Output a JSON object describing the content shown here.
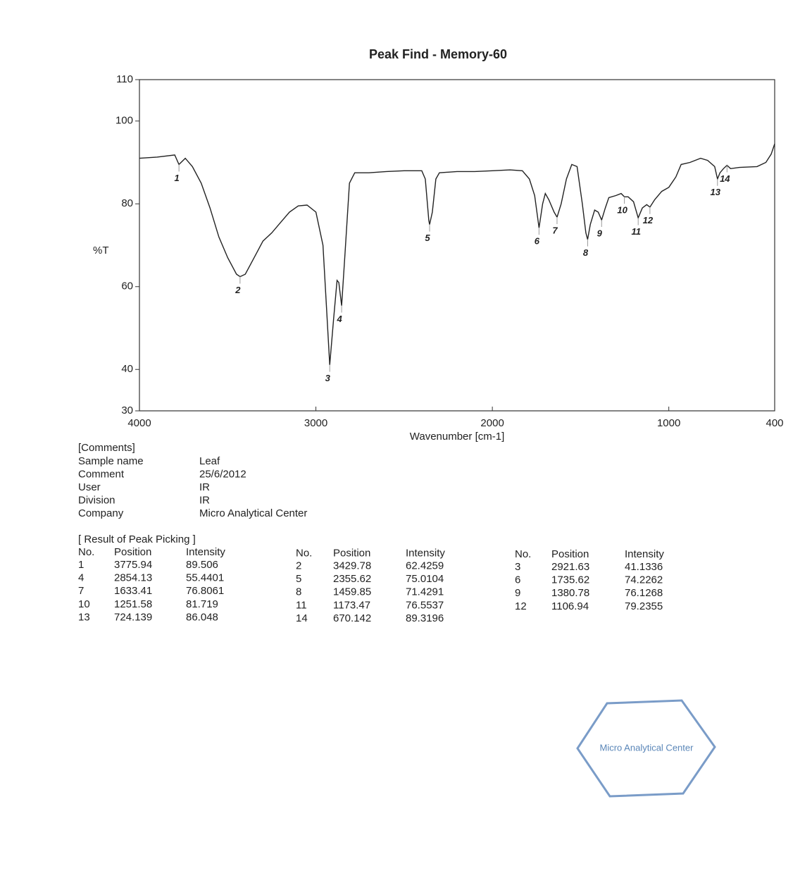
{
  "chart_data": {
    "type": "line",
    "title": "Peak Find - Memory-60",
    "x_label": "Wavenumber [cm-1]",
    "y_label": "%T",
    "color": "#222222",
    "xlim": [
      4000,
      400
    ],
    "xticks": [
      4000,
      3000,
      2000,
      1000,
      400
    ],
    "ylim": [
      30,
      110
    ],
    "yticks": [
      30,
      40,
      60,
      80,
      100,
      110
    ],
    "x": [
      4000,
      3900,
      3800,
      3775.94,
      3740,
      3700,
      3650,
      3600,
      3550,
      3500,
      3450,
      3429.78,
      3400,
      3350,
      3300,
      3250,
      3200,
      3150,
      3100,
      3050,
      3000,
      2960,
      2940,
      2921.63,
      2900,
      2880,
      2870,
      2854.13,
      2835,
      2810,
      2780,
      2700,
      2600,
      2500,
      2400,
      2380,
      2360,
      2355.62,
      2340,
      2320,
      2300,
      2200,
      2100,
      2000,
      1900,
      1830,
      1790,
      1760,
      1735.62,
      1715,
      1700,
      1680,
      1650,
      1633.41,
      1610,
      1580,
      1550,
      1520,
      1490,
      1470,
      1459.85,
      1445,
      1420,
      1400,
      1380.78,
      1360,
      1340,
      1300,
      1270,
      1251.58,
      1230,
      1200,
      1173.47,
      1150,
      1125,
      1106.94,
      1080,
      1040,
      1000,
      960,
      930,
      880,
      820,
      780,
      740,
      724.139,
      710,
      690,
      670.142,
      650,
      600,
      500,
      450,
      420,
      400
    ],
    "values": [
      91,
      91.3,
      91.8,
      89.5,
      91,
      89,
      85,
      79,
      72,
      67,
      63,
      62.4,
      63,
      67,
      71,
      73,
      75.5,
      78,
      79.5,
      79.7,
      78,
      70,
      55,
      41.1,
      52,
      61.5,
      61,
      55.4,
      68,
      85,
      87.5,
      87.5,
      87.8,
      88,
      88,
      86,
      76,
      75,
      78,
      86,
      87.5,
      87.8,
      87.8,
      88,
      88.2,
      88,
      86,
      82,
      74.2,
      80,
      82.5,
      81,
      78,
      76.8,
      80,
      86,
      89.5,
      89,
      80,
      73,
      71.4,
      75,
      78.5,
      78,
      76.1,
      79,
      81.5,
      82,
      82.5,
      81.7,
      81.7,
      80.5,
      76.6,
      79,
      79.8,
      79.2,
      81,
      83,
      84,
      86.5,
      89.5,
      90,
      91,
      90.5,
      89,
      86,
      87.5,
      88.5,
      89.3,
      88.5,
      88.8,
      89,
      90,
      92,
      94.5
    ]
  },
  "comments": {
    "heading": "[Comments]",
    "rows": [
      [
        "Sample name",
        "Leaf"
      ],
      [
        "Comment",
        "25/6/2012"
      ],
      [
        "User",
        "IR"
      ],
      [
        "Division",
        "IR"
      ],
      [
        "Company",
        "Micro Analytical Center"
      ]
    ]
  },
  "peak_table": {
    "title": "[ Result of Peak Picking ]",
    "columns": [
      "No.",
      "Position",
      "Intensity"
    ],
    "rows": [
      [
        1,
        3775.94,
        89.506
      ],
      [
        2,
        3429.78,
        62.4259
      ],
      [
        3,
        2921.63,
        41.1336
      ],
      [
        4,
        2854.13,
        55.4401
      ],
      [
        5,
        2355.62,
        75.0104
      ],
      [
        6,
        1735.62,
        74.2262
      ],
      [
        7,
        1633.41,
        76.8061
      ],
      [
        8,
        1459.85,
        71.4291
      ],
      [
        9,
        1380.78,
        76.1268
      ],
      [
        10,
        1251.58,
        81.719
      ],
      [
        11,
        1173.47,
        76.5537
      ],
      [
        12,
        1106.94,
        79.2355
      ],
      [
        13,
        724.139,
        86.048
      ],
      [
        14,
        670.142,
        89.3196
      ]
    ]
  },
  "stamp": "Micro Analytical Center"
}
